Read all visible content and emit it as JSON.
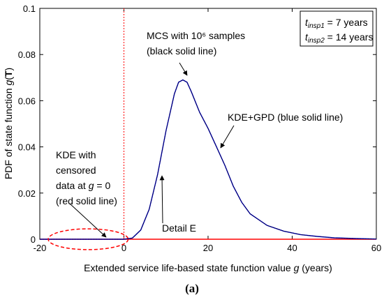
{
  "chart_data": {
    "type": "line",
    "title": "",
    "xlabel": "Extended service life-based state function value g (years)",
    "ylabel": "PDF of state function g(T)",
    "xlim": [
      -20,
      60
    ],
    "ylim": [
      0,
      0.1
    ],
    "x_ticks": [
      "-20",
      "0",
      "20",
      "40",
      "60"
    ],
    "y_ticks": [
      "0",
      "0.02",
      "0.04",
      "0.06",
      "0.08",
      "0.1"
    ],
    "grid": false,
    "series": [
      {
        "name": "MCS with 10^6 samples",
        "color": "#000000",
        "x": [
          -20,
          0,
          2,
          4,
          6,
          8,
          10,
          12,
          13,
          14,
          15,
          16,
          18,
          20,
          22,
          24,
          26,
          28,
          30,
          34,
          38,
          42,
          46,
          50,
          55,
          60
        ],
        "y": [
          0,
          0,
          0.0005,
          0.004,
          0.013,
          0.028,
          0.047,
          0.063,
          0.068,
          0.069,
          0.068,
          0.064,
          0.055,
          0.048,
          0.04,
          0.032,
          0.023,
          0.016,
          0.011,
          0.006,
          0.0035,
          0.002,
          0.0012,
          0.0006,
          0.0003,
          0.0001
        ]
      },
      {
        "name": "KDE+GPD",
        "color": "#0000ff",
        "x": [
          -20,
          0,
          2,
          4,
          6,
          8,
          10,
          12,
          13,
          14,
          15,
          16,
          18,
          20,
          22,
          24,
          26,
          28,
          30,
          34,
          38,
          42,
          46,
          50,
          55,
          60
        ],
        "y": [
          0,
          0,
          0.0005,
          0.004,
          0.013,
          0.028,
          0.047,
          0.063,
          0.068,
          0.069,
          0.068,
          0.064,
          0.055,
          0.048,
          0.04,
          0.032,
          0.023,
          0.016,
          0.011,
          0.006,
          0.0035,
          0.002,
          0.0012,
          0.0006,
          0.0003,
          0.0001
        ]
      },
      {
        "name": "KDE with censored data at g = 0",
        "color": "#ff0000",
        "x": [
          -20,
          60
        ],
        "y": [
          0,
          0
        ]
      }
    ],
    "vline": {
      "x": 0,
      "color": "#ff0000",
      "style": "dotted"
    },
    "ellipse": {
      "cx": -8.5,
      "cy": 0,
      "rx": 9.5,
      "ry": 0.0045,
      "color": "#ff0000",
      "style": "dashed"
    },
    "legend": {
      "placement": "top-right",
      "line1": {
        "symbol": "t",
        "sub": "insp1",
        "text": " = 7 years"
      },
      "line2": {
        "symbol": "t",
        "sub": "insp2",
        "text": " = 14 years"
      }
    },
    "annotations": [
      {
        "lines": [
          "MCS with 10⁶ samples",
          "(black solid line)"
        ],
        "target": [
          14,
          0.069
        ]
      },
      {
        "lines": [
          "KDE+GPD (blue solid line)"
        ],
        "target": [
          22,
          0.04
        ]
      },
      {
        "lines": [
          "KDE with",
          "censored",
          "data at g = 0",
          "(red solid line)"
        ],
        "target": [
          -8,
          0.0005
        ]
      },
      {
        "lines": [
          "Detail E"
        ],
        "target": [
          7.5,
          0.026
        ]
      }
    ]
  },
  "caption": "(a)"
}
